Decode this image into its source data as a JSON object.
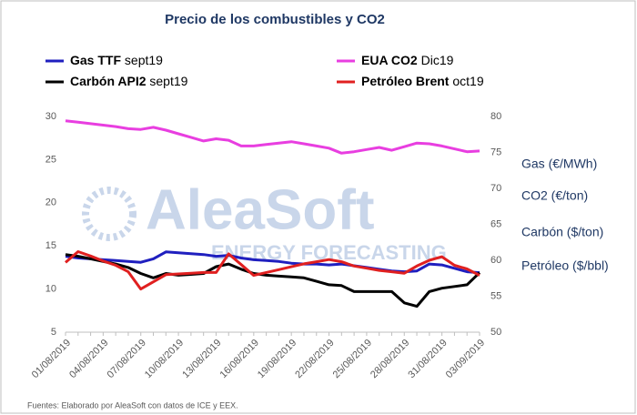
{
  "chart_data": {
    "type": "line",
    "title": "Precio de los combustibles y CO2",
    "categories": [
      "01/08/2019",
      null,
      null,
      "04/08/2019",
      null,
      null,
      "07/08/2019",
      null,
      null,
      "10/08/2019",
      null,
      null,
      "13/08/2019",
      null,
      null,
      "16/08/2019",
      null,
      null,
      "19/08/2019",
      null,
      null,
      "22/08/2019",
      null,
      null,
      "25/08/2019",
      null,
      null,
      "28/08/2019",
      null,
      null,
      "31/08/2019",
      null,
      null,
      "03/09/2019"
    ],
    "series": [
      {
        "name": "Gas TTF",
        "contract": "sept19",
        "color": "#1f1fbf",
        "axis": "y",
        "values": [
          13.8,
          13.6,
          13.5,
          13.4,
          13.3,
          13.2,
          13.1,
          13.5,
          14.3,
          14.2,
          14.1,
          14.0,
          13.8,
          13.9,
          13.6,
          13.4,
          13.3,
          13.2,
          13.0,
          12.9,
          12.9,
          12.8,
          12.9,
          12.7,
          12.5,
          12.3,
          12.1,
          12.0,
          12.1,
          12.9,
          12.8,
          12.4,
          12.0,
          11.9
        ]
      },
      {
        "name": "EUA CO2",
        "contract": "Dic19",
        "color": "#e83ee0",
        "axis": "y2",
        "values": [
          79.4,
          79.2,
          79.0,
          78.8,
          78.6,
          78.3,
          78.2,
          78.5,
          78.1,
          77.6,
          77.1,
          76.6,
          76.9,
          76.7,
          75.9,
          75.9,
          76.1,
          76.3,
          76.5,
          76.2,
          75.9,
          75.6,
          74.9,
          75.1,
          75.4,
          75.7,
          75.3,
          75.8,
          76.3,
          76.2,
          75.9,
          75.5,
          75.1,
          75.2
        ]
      },
      {
        "name": "Carbón API2",
        "contract": "sept19",
        "color": "#000000",
        "axis": "y",
        "values": [
          14.0,
          13.8,
          13.5,
          13.2,
          12.9,
          12.5,
          11.8,
          11.3,
          11.8,
          11.6,
          11.7,
          11.8,
          12.6,
          12.9,
          12.3,
          11.8,
          11.6,
          11.5,
          11.4,
          11.3,
          10.9,
          10.5,
          10.4,
          9.7,
          9.7,
          9.7,
          9.7,
          8.4,
          8.0,
          9.7,
          10.1,
          10.3,
          10.5,
          11.9
        ]
      },
      {
        "name": "Petróleo Brent",
        "contract": "oct19",
        "color": "#e02020",
        "axis": "y2",
        "values": [
          59.7,
          61.2,
          60.6,
          59.9,
          59.3,
          58.4,
          56.0,
          57.0,
          58.0,
          58.1,
          58.2,
          58.3,
          58.3,
          60.9,
          59.4,
          57.9,
          58.3,
          58.7,
          59.1,
          59.5,
          59.8,
          60.1,
          59.8,
          59.2,
          58.9,
          58.6,
          58.4,
          58.2,
          59.2,
          60.0,
          60.5,
          59.3,
          58.8,
          57.9
        ]
      }
    ],
    "ylim": [
      5,
      30
    ],
    "yticks": [
      5,
      10,
      15,
      20,
      25,
      30
    ],
    "y2lim": [
      50,
      80
    ],
    "y2ticks": [
      50,
      55,
      60,
      65,
      70,
      75,
      80
    ],
    "grid": false,
    "side_labels": [
      "Gas (€/MWh)",
      "CO2 (€/ton)",
      "Carbón ($/ton)",
      "Petróleo ($/bbl)"
    ],
    "watermark": [
      "AleaSoft",
      "ENERGY FORECASTING"
    ],
    "source": "Fuentes: Elaborado por AleaSoft con datos de ICE y EEX."
  }
}
